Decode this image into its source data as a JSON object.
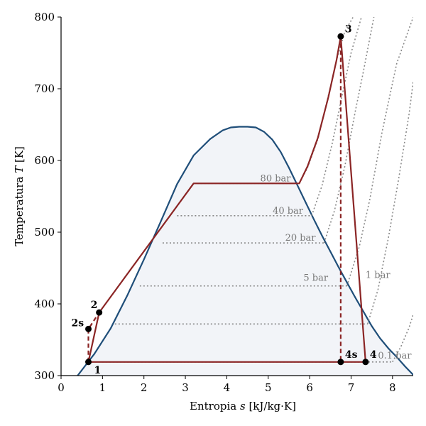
{
  "chart_data": {
    "type": "line",
    "title": "",
    "xlabel": "Entropia s [kJ/kg·K]",
    "xlabel_parts": {
      "before": "Entropia ",
      "italic": "s",
      "after": " [kJ/kg·K]"
    },
    "ylabel": "Temperatura T [K]",
    "ylabel_parts": {
      "before": "Temperatura ",
      "italic": "T",
      "after": " [K]"
    },
    "xlim": [
      0,
      8.5
    ],
    "ylim": [
      300,
      800
    ],
    "xticks": [
      0,
      1,
      2,
      3,
      4,
      5,
      6,
      7,
      8
    ],
    "xtick_labels": [
      "0",
      "1",
      "2",
      "3",
      "4",
      "5",
      "6",
      "7",
      "8"
    ],
    "yticks": [
      300,
      400,
      500,
      600,
      700,
      800
    ],
    "ytick_labels": [
      "300",
      "400",
      "500",
      "600",
      "700",
      "800"
    ],
    "grid": false,
    "colors": {
      "dome": "#1f4e79",
      "dome_fill": "#f2f4f8",
      "cycle": "#8b2525",
      "isobar": "#888888",
      "point": "#000000"
    },
    "saturation_dome": {
      "s": [
        0.4,
        0.8,
        1.2,
        1.6,
        2.0,
        2.4,
        2.8,
        3.2,
        3.6,
        3.9,
        4.1,
        4.3,
        4.5,
        4.7,
        4.9,
        5.1,
        5.3,
        5.5,
        5.7,
        5.9,
        6.1,
        6.3,
        6.5,
        6.7,
        6.9,
        7.1,
        7.3,
        7.5,
        7.7,
        7.9,
        8.1,
        8.3,
        8.5
      ],
      "T": [
        300,
        330,
        366,
        412,
        462,
        514,
        567,
        607,
        630,
        642,
        646,
        647,
        647,
        646,
        640,
        629,
        612,
        590,
        566,
        542,
        518,
        495,
        473,
        451,
        430,
        409,
        389,
        369,
        352,
        338,
        326,
        313,
        301
      ]
    },
    "isobars": [
      {
        "label": "80 bar",
        "T_sat": 568,
        "s_liq": 3.2,
        "s_vap": 5.75
      },
      {
        "label": "40 bar",
        "T_sat": 523,
        "s_liq": 2.8,
        "s_vap": 6.05
      },
      {
        "label": "20 bar",
        "T_sat": 485,
        "s_liq": 2.45,
        "s_vap": 6.35
      },
      {
        "label": "",
        "T_sat": 425,
        "s_liq": 1.9,
        "s_vap": 6.9
      },
      {
        "label": "",
        "T_sat": 372,
        "s_liq": 1.3,
        "s_vap": 7.4
      },
      {
        "label": "",
        "T_sat": 319,
        "s_liq": 0.65,
        "s_vap": 8.0
      }
    ],
    "isobar_side_labels": [
      {
        "label": "5 bar",
        "s": 5.85,
        "T": 432
      },
      {
        "label": "1 bar",
        "s": 7.35,
        "T": 436
      },
      {
        "label": "0.1 bar",
        "s": 7.65,
        "T": 324
      }
    ],
    "superheat_isobars": [
      {
        "s": [
          5.75,
          5.95,
          6.2,
          6.45,
          6.65,
          6.85,
          7.05
        ],
        "T": [
          568,
          590,
          630,
          690,
          740,
          780,
          800
        ]
      },
      {
        "s": [
          6.05,
          6.3,
          6.55,
          6.8,
          7.0,
          7.25
        ],
        "T": [
          523,
          565,
          625,
          695,
          750,
          800
        ]
      },
      {
        "s": [
          6.35,
          6.6,
          6.85,
          7.1,
          7.3,
          7.55
        ],
        "T": [
          485,
          530,
          592,
          668,
          725,
          800
        ]
      },
      {
        "s": [
          6.9,
          7.2,
          7.45,
          7.75,
          8.1,
          8.5
        ],
        "T": [
          425,
          480,
          545,
          640,
          735,
          800
        ]
      },
      {
        "s": [
          7.4,
          7.65,
          7.9,
          8.15,
          8.4,
          8.5
        ],
        "T": [
          372,
          420,
          492,
          575,
          665,
          710
        ]
      },
      {
        "s": [
          8.0,
          8.2,
          8.4,
          8.5
        ],
        "T": [
          319,
          340,
          367,
          385
        ]
      }
    ],
    "cycle": {
      "path_s": [
        0.66,
        0.92,
        3.2,
        5.75,
        5.95,
        6.2,
        6.45,
        6.65,
        6.75,
        7.35,
        0.66
      ],
      "path_T": [
        319,
        388,
        568,
        568,
        592,
        632,
        688,
        740,
        773,
        319,
        319
      ],
      "dashed_pump_s": [
        0.66,
        0.66,
        0.92
      ],
      "dashed_pump_T": [
        319,
        365,
        388
      ],
      "dashed_turbine_s": [
        6.75,
        6.75
      ],
      "dashed_turbine_T": [
        773,
        319
      ]
    },
    "points": [
      {
        "label": "1",
        "s": 0.66,
        "T": 319,
        "dx": 8,
        "dy": 16
      },
      {
        "label": "2s",
        "s": 0.66,
        "T": 365,
        "dx": -24,
        "dy": -4
      },
      {
        "label": "2",
        "s": 0.92,
        "T": 388,
        "dx": -12,
        "dy": -6
      },
      {
        "label": "3",
        "s": 6.75,
        "T": 773,
        "dx": 6,
        "dy": -6
      },
      {
        "label": "4s",
        "s": 6.75,
        "T": 319,
        "dx": 6,
        "dy": -6
      },
      {
        "label": "4",
        "s": 7.35,
        "T": 319,
        "dx": 6,
        "dy": -6
      }
    ]
  }
}
